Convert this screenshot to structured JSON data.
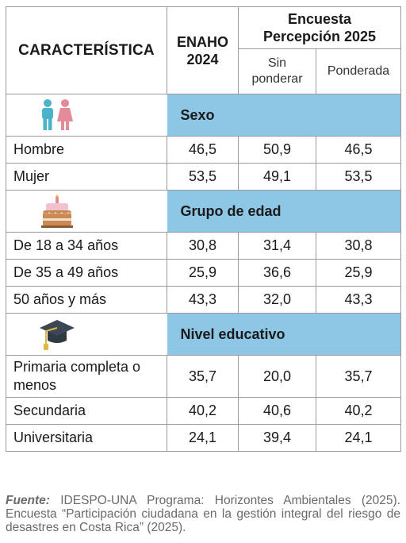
{
  "header": {
    "characteristic": "CARACTERÍSTICA",
    "enaho_line1": "ENAHO",
    "enaho_line2": "2024",
    "survey_line1": "Encuesta",
    "survey_line2": "Percepción 2025",
    "unweighted_line1": "Sin",
    "unweighted_line2": "ponderar",
    "weighted": "Ponderada"
  },
  "sections": [
    {
      "title": "Sexo",
      "icon": "people-icon",
      "rows": [
        {
          "label": "Hombre",
          "enaho": "46,5",
          "unweighted": "50,9",
          "weighted": "46,5"
        },
        {
          "label": "Mujer",
          "enaho": "53,5",
          "unweighted": "49,1",
          "weighted": "53,5"
        }
      ]
    },
    {
      "title": "Grupo de edad",
      "icon": "birthday-cake-icon",
      "rows": [
        {
          "label": "De 18 a 34 años",
          "enaho": "30,8",
          "unweighted": "31,4",
          "weighted": "30,8"
        },
        {
          "label": "De 35 a 49 años",
          "enaho": "25,9",
          "unweighted": "36,6",
          "weighted": "25,9"
        },
        {
          "label": "50 años y más",
          "enaho": "43,3",
          "unweighted": "32,0",
          "weighted": "43,3"
        }
      ]
    },
    {
      "title": "Nivel educativo",
      "icon": "graduation-cap-icon",
      "rows": [
        {
          "label_line1": "Primaria completa o",
          "label_line2": "menos",
          "enaho": "35,7",
          "unweighted": "20,0",
          "weighted": "35,7"
        },
        {
          "label": "Secundaria",
          "enaho": "40,2",
          "unweighted": "40,6",
          "weighted": "40,2"
        },
        {
          "label": "Universitaria",
          "enaho": "24,1",
          "unweighted": "39,4",
          "weighted": "24,1"
        }
      ]
    }
  ],
  "footnote": {
    "label": "Fuente:",
    "text": " IDESPO-UNA Programa: Horizontes Ambientales (2025). Encuesta “Participación ciudadana en la gestión integral del riesgo de desastres en Costa Rica” (2025)."
  },
  "colors": {
    "band": "#8ec6e6",
    "male": "#4ab3c9",
    "female": "#e58a98",
    "border": "#9a9a9a"
  }
}
